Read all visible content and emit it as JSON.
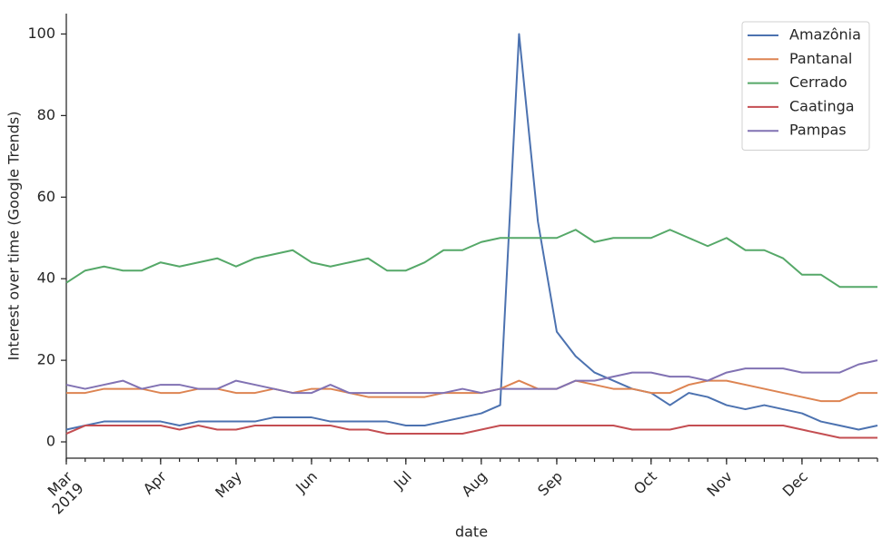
{
  "chart_data": {
    "type": "line",
    "x_label": "date",
    "y_label": "Interest over time (Google Trends)",
    "x": [
      0,
      1,
      2,
      3,
      4,
      5,
      6,
      7,
      8,
      9,
      10,
      11,
      12,
      13,
      14,
      15,
      16,
      17,
      18,
      19,
      20,
      21,
      22,
      23,
      24,
      25,
      26,
      27,
      28,
      29,
      30,
      31,
      32,
      33,
      34,
      35,
      36,
      37,
      38,
      39,
      40,
      41,
      42,
      43
    ],
    "xlim": [
      0,
      43
    ],
    "xticks": [
      {
        "value": 0,
        "label": "Mar\n2019"
      },
      {
        "value": 5,
        "label": "Apr"
      },
      {
        "value": 9,
        "label": "May"
      },
      {
        "value": 13,
        "label": "Jun"
      },
      {
        "value": 18,
        "label": "Jul"
      },
      {
        "value": 22,
        "label": "Aug"
      },
      {
        "value": 26,
        "label": "Sep"
      },
      {
        "value": 31,
        "label": "Oct"
      },
      {
        "value": 35,
        "label": "Nov"
      },
      {
        "value": 39,
        "label": "Dec"
      }
    ],
    "ylim": [
      -4,
      105
    ],
    "yticks": [
      0,
      20,
      40,
      60,
      80,
      100
    ],
    "grid": false,
    "legend": "upper-right",
    "series": [
      {
        "name": "Amazônia",
        "color": "#4c72b0",
        "values": [
          3,
          4,
          5,
          5,
          5,
          5,
          4,
          5,
          5,
          5,
          5,
          6,
          6,
          6,
          5,
          5,
          5,
          5,
          4,
          4,
          5,
          6,
          7,
          9,
          100,
          54,
          27,
          21,
          17,
          15,
          13,
          12,
          9,
          12,
          11,
          9,
          8,
          9,
          8,
          7,
          5,
          4,
          3,
          4
        ]
      },
      {
        "name": "Pantanal",
        "color": "#dd8452",
        "values": [
          12,
          12,
          13,
          13,
          13,
          12,
          12,
          13,
          13,
          12,
          12,
          13,
          12,
          13,
          13,
          12,
          11,
          11,
          11,
          11,
          12,
          12,
          12,
          13,
          15,
          13,
          13,
          15,
          14,
          13,
          13,
          12,
          12,
          14,
          15,
          15,
          14,
          13,
          12,
          11,
          10,
          10,
          12,
          12
        ]
      },
      {
        "name": "Cerrado",
        "color": "#55a868",
        "values": [
          39,
          42,
          43,
          42,
          42,
          44,
          43,
          44,
          45,
          43,
          45,
          46,
          47,
          44,
          43,
          44,
          45,
          42,
          42,
          44,
          47,
          47,
          49,
          50,
          50,
          50,
          50,
          52,
          49,
          50,
          50,
          50,
          52,
          50,
          48,
          50,
          47,
          47,
          45,
          41,
          41,
          38,
          38,
          38
        ]
      },
      {
        "name": "Caatinga",
        "color": "#c44e52",
        "values": [
          2,
          4,
          4,
          4,
          4,
          4,
          3,
          4,
          3,
          3,
          4,
          4,
          4,
          4,
          4,
          3,
          3,
          2,
          2,
          2,
          2,
          2,
          3,
          4,
          4,
          4,
          4,
          4,
          4,
          4,
          3,
          3,
          3,
          4,
          4,
          4,
          4,
          4,
          4,
          3,
          2,
          1,
          1,
          1
        ]
      },
      {
        "name": "Pampas",
        "color": "#8172b3",
        "values": [
          14,
          13,
          14,
          15,
          13,
          14,
          14,
          13,
          13,
          15,
          14,
          13,
          12,
          12,
          14,
          12,
          12,
          12,
          12,
          12,
          12,
          13,
          12,
          13,
          13,
          13,
          13,
          15,
          15,
          16,
          17,
          17,
          16,
          16,
          15,
          17,
          18,
          18,
          18,
          17,
          17,
          17,
          19,
          20
        ]
      }
    ]
  }
}
